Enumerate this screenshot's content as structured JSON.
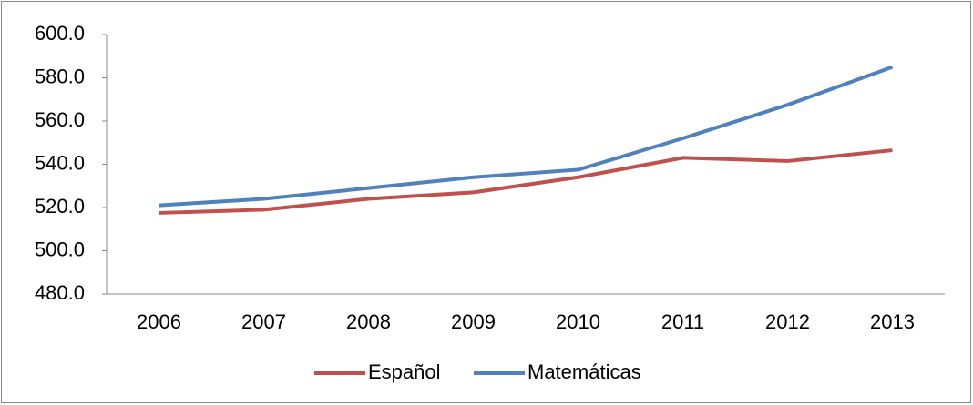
{
  "chart_data": {
    "type": "line",
    "categories": [
      "2006",
      "2007",
      "2008",
      "2009",
      "2010",
      "2011",
      "2012",
      "2013"
    ],
    "series": [
      {
        "name": "Español",
        "color": "#c0504d",
        "values": [
          517.5,
          519,
          524,
          527,
          534,
          543,
          541.5,
          546.5
        ]
      },
      {
        "name": "Matemáticas",
        "color": "#4f81bd",
        "values": [
          521,
          524,
          529,
          534,
          537.5,
          552,
          567.5,
          585
        ]
      }
    ],
    "ylim": [
      480,
      600
    ],
    "yticks": [
      {
        "value": 480,
        "label": "480.0"
      },
      {
        "value": 500,
        "label": "500.0"
      },
      {
        "value": 520,
        "label": "520.0"
      },
      {
        "value": 540,
        "label": "540.0"
      },
      {
        "value": 560,
        "label": "560.0"
      },
      {
        "value": 580,
        "label": "580.0"
      },
      {
        "value": 600,
        "label": "600.0"
      }
    ],
    "grid": false,
    "legend": "bottom"
  }
}
